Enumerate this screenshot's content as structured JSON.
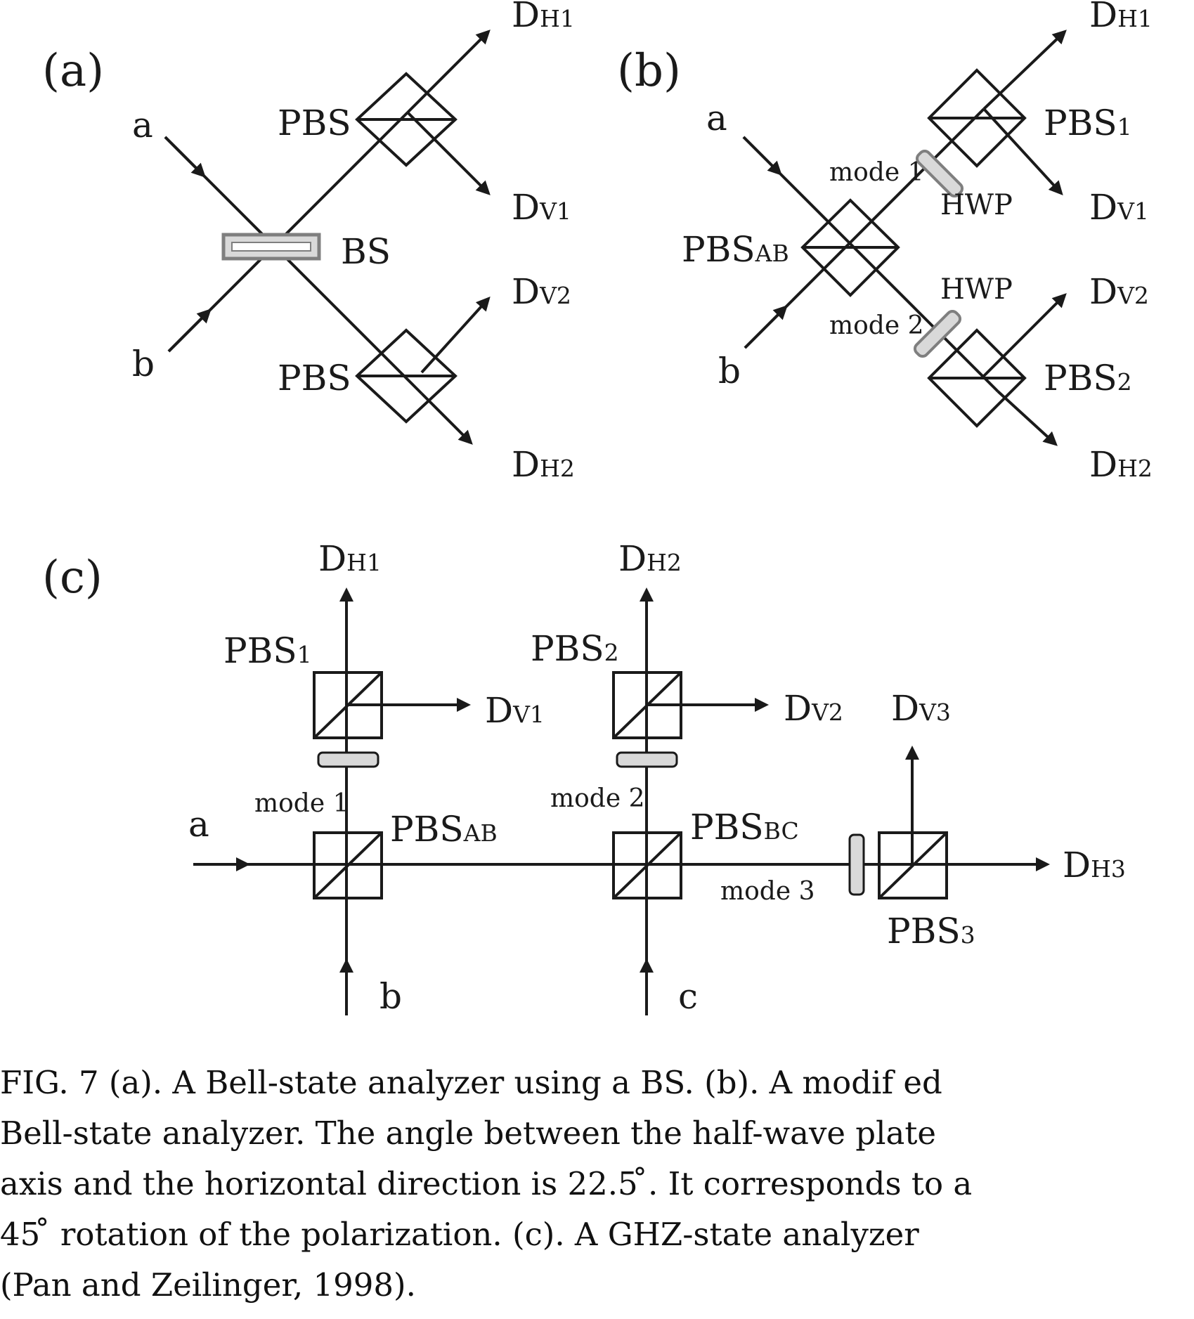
{
  "panels": {
    "a": {
      "label": "(a)",
      "inputs": [
        "a",
        "b"
      ],
      "bs": "BS",
      "pbs_top": "PBS",
      "pbs_bottom": "PBS",
      "detectors": {
        "h1": "H1",
        "v1": "V1",
        "v2": "V2",
        "h2": "H2"
      }
    },
    "b": {
      "label": "(b)",
      "inputs": [
        "a",
        "b"
      ],
      "pbs_ab_main": "PBS",
      "pbs_ab_sub": "AB",
      "pbs1_main": "PBS",
      "pbs1_sub": "1",
      "pbs2_main": "PBS",
      "pbs2_sub": "2",
      "hwp_top": "HWP",
      "hwp_bottom": "HWP",
      "mode1": "mode 1",
      "mode2": "mode 2",
      "detectors": {
        "h1": "H1",
        "v1": "V1",
        "v2": "V2",
        "h2": "H2"
      }
    },
    "c": {
      "label": "(c)",
      "inputs": [
        "a",
        "b",
        "c"
      ],
      "pbs1_main": "PBS",
      "pbs1_sub": "1",
      "pbs2_main": "PBS",
      "pbs2_sub": "2",
      "pbs3_main": "PBS",
      "pbs3_sub": "3",
      "pbs_ab_main": "PBS",
      "pbs_ab_sub": "AB",
      "pbs_bc_main": "PBS",
      "pbs_bc_sub": "BC",
      "mode1": "mode 1",
      "mode2": "mode 2",
      "mode3": "mode 3",
      "detectors": {
        "h1": "H1",
        "h2": "H2",
        "v1": "V1",
        "v2": "V2",
        "v3": "V3",
        "h3": "H3"
      }
    }
  },
  "detector_letter": "D",
  "caption_lines": [
    "FIG. 7  (a).  A Bell-state analyzer using a BS. (b).  A modif ed",
    "Bell-state analyzer.  The angle between the half-wave plate",
    "axis and the horizontal direction is 22.5 ̊. It corresponds to a",
    "45 ̊ rotation of the polarization.  (c).  A GHZ-state analyzer",
    "(Pan and Zeilinger, 1998)."
  ],
  "colors": {
    "line": "#1a1a1a",
    "optic_fill": "#d9d9d9",
    "optic_stroke": "#7f7f7f"
  }
}
